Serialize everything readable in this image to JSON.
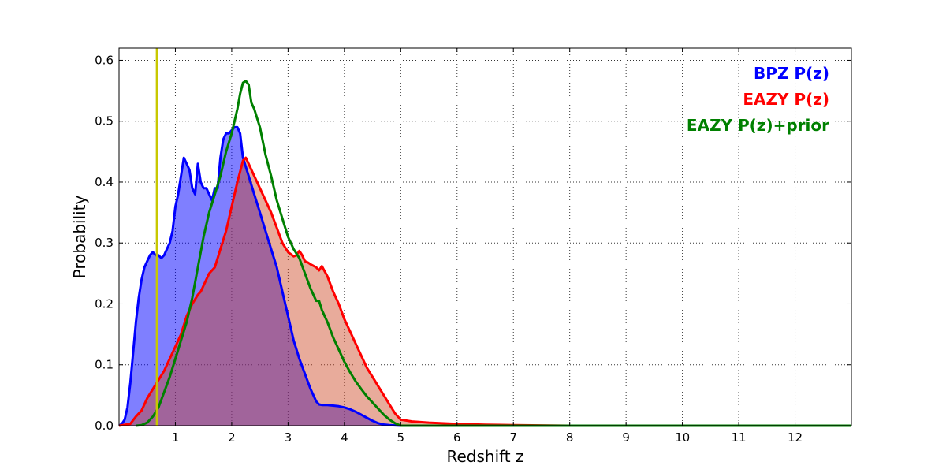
{
  "chart_data": {
    "type": "area",
    "title": "",
    "xlabel": "Redshift z",
    "ylabel": "Probability",
    "xlim": [
      0,
      13
    ],
    "ylim": [
      0,
      0.62
    ],
    "grid": true,
    "legend_position": "top-right",
    "x_ticks": [
      1,
      2,
      3,
      4,
      5,
      6,
      7,
      8,
      9,
      10,
      11,
      12
    ],
    "x_tick_labels": [
      "1",
      "2",
      "3",
      "4",
      "5",
      "6",
      "7",
      "8",
      "9",
      "10",
      "11",
      "12"
    ],
    "y_ticks": [
      0,
      0.1,
      0.2,
      0.3,
      0.4,
      0.5,
      0.6
    ],
    "y_tick_labels": [
      "0.0",
      "0.1",
      "0.2",
      "0.3",
      "0.4",
      "0.5",
      "0.6"
    ],
    "vline": {
      "x": 0.67,
      "color": "#c8c800"
    },
    "series": [
      {
        "name": "BPZ P(z)",
        "color": "#0000ff",
        "fill": "#0000ff",
        "fill_opacity": 0.5,
        "points": [
          [
            0,
            0
          ],
          [
            0.05,
            0.003
          ],
          [
            0.1,
            0.01
          ],
          [
            0.15,
            0.03
          ],
          [
            0.2,
            0.07
          ],
          [
            0.25,
            0.12
          ],
          [
            0.3,
            0.17
          ],
          [
            0.35,
            0.21
          ],
          [
            0.4,
            0.24
          ],
          [
            0.45,
            0.26
          ],
          [
            0.5,
            0.27
          ],
          [
            0.55,
            0.28
          ],
          [
            0.6,
            0.285
          ],
          [
            0.65,
            0.28
          ],
          [
            0.7,
            0.28
          ],
          [
            0.75,
            0.275
          ],
          [
            0.8,
            0.28
          ],
          [
            0.85,
            0.29
          ],
          [
            0.9,
            0.3
          ],
          [
            0.95,
            0.32
          ],
          [
            1.0,
            0.36
          ],
          [
            1.05,
            0.38
          ],
          [
            1.1,
            0.41
          ],
          [
            1.15,
            0.44
          ],
          [
            1.2,
            0.43
          ],
          [
            1.25,
            0.42
          ],
          [
            1.3,
            0.39
          ],
          [
            1.35,
            0.38
          ],
          [
            1.4,
            0.43
          ],
          [
            1.45,
            0.4
          ],
          [
            1.5,
            0.39
          ],
          [
            1.55,
            0.39
          ],
          [
            1.6,
            0.38
          ],
          [
            1.65,
            0.37
          ],
          [
            1.7,
            0.39
          ],
          [
            1.75,
            0.39
          ],
          [
            1.8,
            0.44
          ],
          [
            1.85,
            0.47
          ],
          [
            1.9,
            0.48
          ],
          [
            1.95,
            0.48
          ],
          [
            2.0,
            0.485
          ],
          [
            2.05,
            0.49
          ],
          [
            2.1,
            0.49
          ],
          [
            2.15,
            0.48
          ],
          [
            2.2,
            0.44
          ],
          [
            2.3,
            0.41
          ],
          [
            2.4,
            0.38
          ],
          [
            2.5,
            0.35
          ],
          [
            2.6,
            0.32
          ],
          [
            2.7,
            0.29
          ],
          [
            2.8,
            0.26
          ],
          [
            2.9,
            0.22
          ],
          [
            3.0,
            0.18
          ],
          [
            3.1,
            0.14
          ],
          [
            3.2,
            0.11
          ],
          [
            3.3,
            0.085
          ],
          [
            3.4,
            0.06
          ],
          [
            3.5,
            0.04
          ],
          [
            3.55,
            0.035
          ],
          [
            3.6,
            0.034
          ],
          [
            3.7,
            0.034
          ],
          [
            3.8,
            0.033
          ],
          [
            3.9,
            0.032
          ],
          [
            4.0,
            0.03
          ],
          [
            4.1,
            0.027
          ],
          [
            4.2,
            0.023
          ],
          [
            4.3,
            0.018
          ],
          [
            4.4,
            0.013
          ],
          [
            4.5,
            0.008
          ],
          [
            4.6,
            0.004
          ],
          [
            4.7,
            0.002
          ],
          [
            4.8,
            0.001
          ],
          [
            5.0,
            0.0
          ],
          [
            13,
            0.0
          ]
        ]
      },
      {
        "name": "EAZY P(z)",
        "color": "#ff0000",
        "fill": "#cc4422",
        "fill_opacity": 0.45,
        "points": [
          [
            0,
            0
          ],
          [
            0.2,
            0.003
          ],
          [
            0.3,
            0.015
          ],
          [
            0.4,
            0.025
          ],
          [
            0.5,
            0.045
          ],
          [
            0.6,
            0.06
          ],
          [
            0.7,
            0.075
          ],
          [
            0.8,
            0.09
          ],
          [
            0.9,
            0.11
          ],
          [
            1.0,
            0.13
          ],
          [
            1.1,
            0.15
          ],
          [
            1.2,
            0.18
          ],
          [
            1.3,
            0.2
          ],
          [
            1.4,
            0.215
          ],
          [
            1.45,
            0.22
          ],
          [
            1.5,
            0.23
          ],
          [
            1.6,
            0.25
          ],
          [
            1.7,
            0.26
          ],
          [
            1.8,
            0.29
          ],
          [
            1.9,
            0.32
          ],
          [
            2.0,
            0.36
          ],
          [
            2.1,
            0.4
          ],
          [
            2.2,
            0.435
          ],
          [
            2.25,
            0.44
          ],
          [
            2.3,
            0.43
          ],
          [
            2.4,
            0.41
          ],
          [
            2.5,
            0.39
          ],
          [
            2.6,
            0.37
          ],
          [
            2.7,
            0.35
          ],
          [
            2.8,
            0.325
          ],
          [
            2.9,
            0.3
          ],
          [
            3.0,
            0.285
          ],
          [
            3.1,
            0.278
          ],
          [
            3.15,
            0.28
          ],
          [
            3.2,
            0.287
          ],
          [
            3.25,
            0.28
          ],
          [
            3.3,
            0.27
          ],
          [
            3.35,
            0.268
          ],
          [
            3.4,
            0.265
          ],
          [
            3.5,
            0.26
          ],
          [
            3.55,
            0.255
          ],
          [
            3.6,
            0.262
          ],
          [
            3.7,
            0.245
          ],
          [
            3.8,
            0.22
          ],
          [
            3.9,
            0.2
          ],
          [
            4.0,
            0.175
          ],
          [
            4.1,
            0.155
          ],
          [
            4.2,
            0.135
          ],
          [
            4.3,
            0.115
          ],
          [
            4.4,
            0.095
          ],
          [
            4.5,
            0.08
          ],
          [
            4.6,
            0.065
          ],
          [
            4.7,
            0.05
          ],
          [
            4.8,
            0.035
          ],
          [
            4.9,
            0.02
          ],
          [
            5.0,
            0.01
          ],
          [
            5.2,
            0.007
          ],
          [
            5.5,
            0.005
          ],
          [
            6.0,
            0.003
          ],
          [
            6.5,
            0.0015
          ],
          [
            7.0,
            0.001
          ],
          [
            8.0,
            0.0
          ],
          [
            13,
            0.0
          ]
        ]
      },
      {
        "name": "EAZY P(z)+prior",
        "color": "#008000",
        "fill": "none",
        "fill_opacity": 0,
        "points": [
          [
            0.3,
            0
          ],
          [
            0.4,
            0.001
          ],
          [
            0.5,
            0.005
          ],
          [
            0.6,
            0.015
          ],
          [
            0.7,
            0.03
          ],
          [
            0.8,
            0.055
          ],
          [
            0.9,
            0.08
          ],
          [
            1.0,
            0.11
          ],
          [
            1.1,
            0.14
          ],
          [
            1.2,
            0.17
          ],
          [
            1.3,
            0.21
          ],
          [
            1.4,
            0.26
          ],
          [
            1.5,
            0.31
          ],
          [
            1.6,
            0.35
          ],
          [
            1.7,
            0.38
          ],
          [
            1.8,
            0.41
          ],
          [
            1.9,
            0.45
          ],
          [
            2.0,
            0.48
          ],
          [
            2.1,
            0.52
          ],
          [
            2.15,
            0.545
          ],
          [
            2.2,
            0.563
          ],
          [
            2.25,
            0.566
          ],
          [
            2.3,
            0.56
          ],
          [
            2.35,
            0.53
          ],
          [
            2.4,
            0.52
          ],
          [
            2.5,
            0.49
          ],
          [
            2.6,
            0.445
          ],
          [
            2.7,
            0.41
          ],
          [
            2.8,
            0.37
          ],
          [
            2.9,
            0.34
          ],
          [
            3.0,
            0.31
          ],
          [
            3.1,
            0.29
          ],
          [
            3.2,
            0.275
          ],
          [
            3.3,
            0.25
          ],
          [
            3.4,
            0.225
          ],
          [
            3.5,
            0.205
          ],
          [
            3.55,
            0.205
          ],
          [
            3.6,
            0.19
          ],
          [
            3.7,
            0.17
          ],
          [
            3.8,
            0.145
          ],
          [
            3.9,
            0.125
          ],
          [
            4.0,
            0.105
          ],
          [
            4.1,
            0.088
          ],
          [
            4.2,
            0.073
          ],
          [
            4.3,
            0.06
          ],
          [
            4.4,
            0.048
          ],
          [
            4.5,
            0.038
          ],
          [
            4.6,
            0.028
          ],
          [
            4.7,
            0.018
          ],
          [
            4.8,
            0.01
          ],
          [
            4.9,
            0.004
          ],
          [
            5.0,
            0.0
          ],
          [
            13,
            0.0
          ]
        ]
      }
    ]
  }
}
